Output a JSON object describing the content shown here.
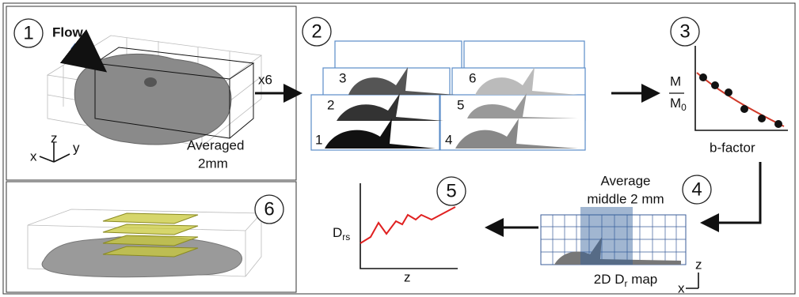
{
  "panels": [
    {
      "number": "1",
      "flow_label": "Flow",
      "caption": [
        "Averaged",
        "2mm"
      ],
      "axes": [
        "x",
        "z",
        "y"
      ]
    },
    {
      "number": "2",
      "multiplier": "x6",
      "slice_labels": [
        "1",
        "2",
        "3",
        "4",
        "5",
        "6"
      ]
    },
    {
      "number": "3",
      "y_label": {
        "numerator": "M",
        "denominator": "M",
        "subscript": "0"
      },
      "x_label": "b-factor"
    },
    {
      "number": "4",
      "caption": [
        "Average",
        "middle 2 mm"
      ],
      "map_label": {
        "prefix": "2D D",
        "subscript": "r",
        "suffix": " map"
      },
      "axes": [
        "z",
        "x"
      ]
    },
    {
      "number": "5",
      "y_label": {
        "base": "D",
        "subscript": "rs"
      },
      "x_label": "z"
    },
    {
      "number": "6"
    }
  ]
}
